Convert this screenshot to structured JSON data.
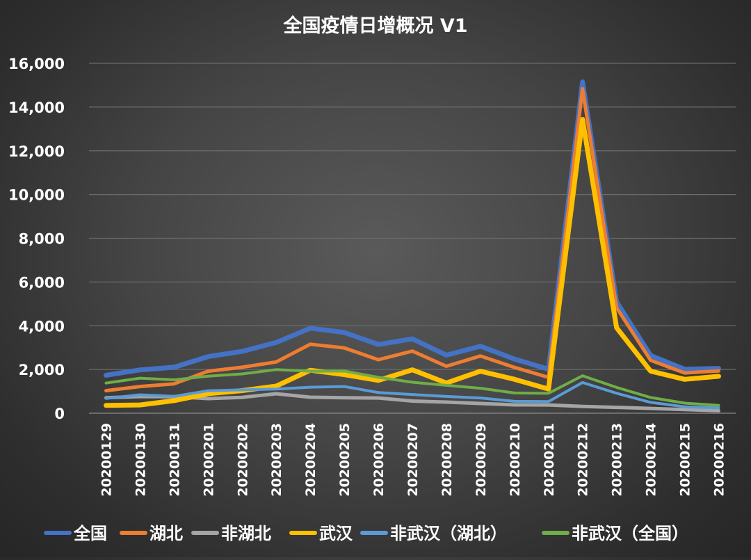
{
  "chart_data": {
    "type": "line",
    "title": "全国疫情日增概况 V1",
    "xlabel": "",
    "ylabel": "",
    "categories": [
      "20200129",
      "20200130",
      "20200131",
      "20200201",
      "20200202",
      "20200203",
      "20200204",
      "20200205",
      "20200206",
      "20200207",
      "20200208",
      "20200209",
      "20200210",
      "20200211",
      "20200212",
      "20200213",
      "20200214",
      "20200215",
      "20200216"
    ],
    "ylim": [
      0,
      16000
    ],
    "yticks": [
      0,
      2000,
      4000,
      6000,
      8000,
      10000,
      12000,
      14000,
      16000
    ],
    "ytick_labels": [
      "0",
      "2,000",
      "4,000",
      "6,000",
      "8,000",
      "10,000",
      "12,000",
      "14,000",
      "16,000"
    ],
    "grid": true,
    "legend_position": "bottom",
    "series": [
      {
        "name": "全国",
        "color": "#4472c4",
        "values": [
          1737,
          1982,
          2102,
          2590,
          2829,
          3235,
          3887,
          3694,
          3143,
          3399,
          2656,
          3062,
          2478,
          2015,
          15152,
          5090,
          2641,
          2009,
          2048
        ]
      },
      {
        "name": "湖北",
        "color": "#ed7d31",
        "values": [
          1032,
          1220,
          1347,
          1921,
          2103,
          2345,
          3156,
          2987,
          2447,
          2841,
          2147,
          2618,
          2097,
          1638,
          14840,
          4823,
          2420,
          1843,
          1933
        ]
      },
      {
        "name": "非湖北",
        "color": "#a5a5a5",
        "values": [
          705,
          762,
          755,
          669,
          726,
          890,
          731,
          707,
          696,
          558,
          509,
          444,
          381,
          377,
          312,
          267,
          221,
          166,
          115
        ]
      },
      {
        "name": "武汉",
        "color": "#ffc000",
        "values": [
          356,
          378,
          576,
          894,
          1033,
          1242,
          1967,
          1766,
          1501,
          1985,
          1379,
          1920,
          1552,
          1104,
          13436,
          3910,
          1923,
          1548,
          1690
        ]
      },
      {
        "name": "非武汉（湖北）",
        "color": "#5b9bd5",
        "values": [
          676,
          842,
          771,
          1027,
          1070,
          1103,
          1189,
          1221,
          946,
          856,
          768,
          698,
          545,
          534,
          1404,
          913,
          497,
          295,
          243
        ]
      },
      {
        "name": "非武汉（全国）",
        "color": "#70ad47",
        "values": [
          1381,
          1604,
          1526,
          1696,
          1796,
          1993,
          1920,
          1928,
          1642,
          1414,
          1277,
          1142,
          926,
          911,
          1716,
          1180,
          718,
          461,
          358
        ]
      }
    ]
  }
}
